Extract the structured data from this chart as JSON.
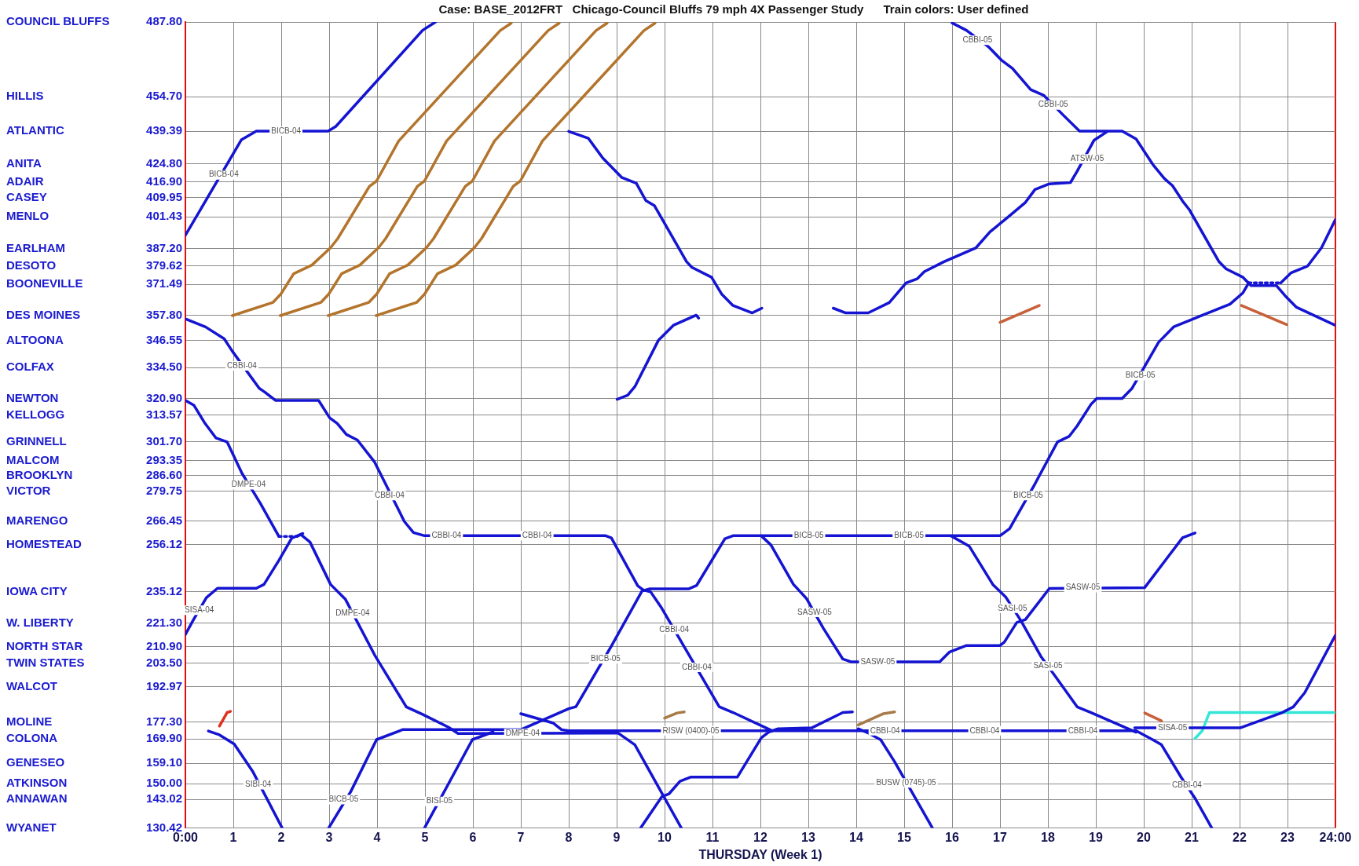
{
  "chart_data": {
    "type": "line",
    "title": "Case: BASE_2012FRT   Chicago-Council Bluffs 79 mph 4X Passenger Study      Train colors: User defined",
    "xlabel": "THURSDAY (Week 1)",
    "xlim": [
      0,
      24
    ],
    "xticks": [
      {
        "value": 0,
        "label": "0:00"
      },
      1,
      2,
      3,
      4,
      5,
      6,
      7,
      8,
      9,
      10,
      11,
      12,
      13,
      14,
      15,
      16,
      17,
      18,
      19,
      20,
      21,
      22,
      23,
      {
        "value": 24,
        "label": "24:00"
      }
    ],
    "ylim": [
      130.4,
      487.8
    ],
    "yticks": [
      {
        "value": 487.8,
        "label": "487.80"
      },
      {
        "value": 454.7,
        "label": "454.70"
      },
      {
        "value": 439.39,
        "label": "439.39"
      },
      {
        "value": 424.8,
        "label": "424.80"
      },
      {
        "value": 416.9,
        "label": "416.90"
      },
      {
        "value": 409.95,
        "label": "409.95"
      },
      {
        "value": 401.43,
        "label": "401.43"
      },
      {
        "value": 387.2,
        "label": "387.20"
      },
      {
        "value": 379.62,
        "label": "379.62"
      },
      {
        "value": 371.49,
        "label": "371.49"
      },
      {
        "value": 357.8,
        "label": "357.80"
      },
      {
        "value": 346.55,
        "label": "346.55"
      },
      {
        "value": 334.5,
        "label": "334.50"
      },
      {
        "value": 320.9,
        "label": "320.90"
      },
      {
        "value": 313.57,
        "label": "313.57"
      },
      {
        "value": 301.7,
        "label": "301.70"
      },
      {
        "value": 293.35,
        "label": "293.35"
      },
      {
        "value": 286.6,
        "label": "286.60"
      },
      {
        "value": 279.75,
        "label": "279.75"
      },
      {
        "value": 266.45,
        "label": "266.45"
      },
      {
        "value": 256.12,
        "label": "256.12"
      },
      {
        "value": 235.12,
        "label": "235.12"
      },
      {
        "value": 221.3,
        "label": "221.30"
      },
      {
        "value": 210.9,
        "label": "210.90"
      },
      {
        "value": 203.5,
        "label": "203.50"
      },
      {
        "value": 192.97,
        "label": "192.97"
      },
      {
        "value": 177.3,
        "label": "177.30"
      },
      {
        "value": 169.9,
        "label": "169.90"
      },
      {
        "value": 159.1,
        "label": "159.10"
      },
      {
        "value": 150.0,
        "label": "150.00"
      },
      {
        "value": 143.02,
        "label": "143.02"
      },
      {
        "value": 130.42,
        "label": "130.42"
      }
    ],
    "grid": true,
    "marker": "none",
    "line_style": "solid",
    "series": [
      {
        "color": "#1414d2",
        "x": [
          0,
          1.17,
          1.48,
          2.98,
          3.14,
          4.95,
          5.22
        ],
        "values": [
          393.2,
          435.6,
          439.4,
          439.4,
          441.5,
          484.1,
          487.8
        ]
      },
      {
        "color": "#b3742c",
        "x": [
          0.98,
          1.83,
          1.99,
          2.26,
          2.64,
          3.03,
          3.18,
          3.84,
          3.99,
          4.45,
          6.57,
          6.8
        ],
        "values": [
          357.6,
          363.5,
          367.1,
          376.2,
          380.0,
          387.7,
          391.8,
          414.9,
          417.3,
          435.0,
          484.0,
          487.3
        ]
      },
      {
        "color": "#b3742c",
        "x": [
          1.98,
          2.83,
          2.99,
          3.26,
          3.64,
          4.03,
          4.18,
          4.84,
          4.99,
          5.45,
          7.57,
          7.8
        ],
        "values": [
          357.6,
          363.5,
          367.1,
          376.2,
          380.0,
          387.7,
          391.8,
          414.9,
          417.3,
          435.0,
          484.0,
          487.3
        ]
      },
      {
        "color": "#b3742c",
        "x": [
          2.98,
          3.83,
          3.99,
          4.26,
          4.64,
          5.03,
          5.18,
          5.84,
          5.99,
          6.45,
          8.57,
          8.8
        ],
        "values": [
          357.6,
          363.5,
          367.1,
          376.2,
          380.0,
          387.7,
          391.8,
          414.9,
          417.3,
          435.0,
          484.0,
          487.3
        ]
      },
      {
        "color": "#b3742c",
        "x": [
          3.98,
          4.83,
          4.99,
          5.26,
          5.64,
          6.03,
          6.18,
          6.84,
          6.99,
          7.45,
          9.57,
          9.8
        ],
        "values": [
          357.6,
          363.5,
          367.1,
          376.2,
          380.0,
          387.7,
          391.8,
          414.9,
          417.3,
          435.0,
          484.0,
          487.3
        ]
      },
      {
        "color": "#1414d2",
        "x": [
          0,
          0.42,
          0.81,
          0.98,
          1.54,
          1.65,
          1.88,
          2.78,
          3.01,
          3.17,
          3.36,
          3.59,
          3.95,
          4.57,
          4.76,
          4.99,
          8.77,
          8.89,
          9.44,
          9.56,
          9.71,
          9.94,
          11.14,
          11.43,
          12.25,
          19.84,
          20.19,
          20.37,
          20.78,
          21.07,
          21.42
        ],
        "values": [
          356.2,
          352.6,
          347.3,
          341.8,
          325.4,
          323.8,
          320.0,
          320.0,
          312.3,
          309.8,
          304.9,
          302.4,
          292.6,
          266.3,
          261.4,
          260.0,
          260.0,
          259.0,
          237.8,
          235.9,
          235.1,
          227.9,
          184.2,
          181.6,
          173.5,
          173.5,
          169.5,
          167.3,
          152.9,
          143.6,
          130.4
        ]
      },
      {
        "color": "#1414d2",
        "x": [
          0,
          0.18,
          0.41,
          0.64,
          0.87,
          1.18,
          1.56,
          1.95
        ],
        "values": [
          320.0,
          317.8,
          309.8,
          303.3,
          301.6,
          287.7,
          274.5,
          259.7
        ]
      },
      {
        "color": "#1414d2",
        "line_style": "dotted",
        "x": [
          1.95,
          2.33
        ],
        "values": [
          259.7,
          259.7
        ]
      },
      {
        "color": "#1414d2",
        "x": [
          2.33,
          2.41,
          2.6,
          3.03,
          3.34,
          3.95,
          4.61,
          4.95,
          5.49,
          5.69,
          9.03,
          9.38,
          10.35
        ],
        "values": [
          259.7,
          260.5,
          257.2,
          238.4,
          231.8,
          207.1,
          184.1,
          180.8,
          175.1,
          172.3,
          172.5,
          167.3,
          130.4
        ]
      },
      {
        "color": "#1414d2",
        "x": [
          0,
          0.17,
          0.44,
          0.67,
          1.48,
          1.64,
          1.95,
          2.22,
          2.45
        ],
        "values": [
          216.2,
          222.8,
          232.6,
          236.7,
          236.7,
          238.4,
          249.0,
          258.9,
          261.0
        ]
      },
      {
        "color": "#1414d2",
        "x": [
          0.48,
          0.71,
          1.02,
          1.41,
          2.02
        ],
        "values": [
          173.4,
          171.7,
          167.6,
          155.3,
          130.4
        ]
      },
      {
        "color": "#1414d2",
        "x": [
          2.99,
          3.45,
          3.99,
          4.53,
          7.0,
          8.0,
          8.15,
          8.89,
          9.53,
          9.68,
          10.5,
          10.67,
          11.26,
          11.43,
          17.0,
          17.2,
          17.73,
          18.2,
          18.44,
          18.61,
          18.9,
          19.02,
          19.55,
          19.75,
          20.31,
          20.63,
          21.8,
          22.07,
          22.19
        ],
        "values": [
          130.4,
          146.5,
          169.6,
          174.0,
          174.0,
          183.3,
          184.2,
          211.1,
          235.5,
          236.4,
          236.4,
          238.0,
          258.7,
          260.0,
          260.0,
          263.1,
          283.0,
          301.6,
          304.0,
          308.7,
          318.3,
          320.9,
          320.9,
          325.2,
          345.8,
          352.7,
          362.7,
          367.7,
          372.1
        ]
      },
      {
        "color": "#1414d2",
        "line_style": "dotted",
        "x": [
          22.19,
          22.86
        ],
        "values": [
          372.1,
          372.1
        ]
      },
      {
        "color": "#1414d2",
        "x": [
          22.86,
          23.07,
          23.42,
          23.71,
          24
        ],
        "values": [
          372.1,
          376.5,
          379.6,
          387.7,
          400.2
        ]
      },
      {
        "color": "#1414d2",
        "x": [
          4.99,
          5.99,
          6.42
        ],
        "values": [
          130.4,
          169.6,
          173.0
        ]
      },
      {
        "color": "#1414d2",
        "x": [
          7.0,
          7.68,
          7.85,
          8.0,
          12.25
        ],
        "values": [
          181.1,
          176.9,
          174.0,
          173.5,
          173.5
        ]
      },
      {
        "color": "#1414d2",
        "x": [
          8.0,
          8.41,
          8.71,
          9.11,
          9.41,
          9.61,
          9.79,
          10.46,
          10.57,
          10.98,
          11.19,
          11.42,
          11.83,
          12.03
        ],
        "values": [
          439.3,
          436.2,
          427.5,
          418.8,
          416.3,
          408.6,
          406.3,
          381.5,
          379.0,
          374.6,
          367.2,
          362.2,
          358.8,
          360.9
        ]
      },
      {
        "color": "#1414d2",
        "x": [
          9.01,
          9.23,
          9.38,
          9.87,
          10.19,
          10.66,
          10.71
        ],
        "values": [
          320.5,
          322.3,
          326.1,
          346.6,
          353.4,
          357.8,
          356.5
        ]
      },
      {
        "color": "#1414d2",
        "x": [
          9.5,
          9.94,
          10.09,
          10.32,
          10.55,
          11.52,
          12.02,
          12.17,
          12.37,
          13.07,
          13.72,
          13.92
        ],
        "values": [
          130.4,
          144.2,
          145.5,
          151.1,
          153.0,
          153.0,
          170.4,
          172.9,
          174.4,
          174.8,
          181.6,
          181.9
        ]
      },
      {
        "color": "#1414d2",
        "x": [
          12.02,
          12.22,
          12.69,
          12.96,
          13.31,
          13.72,
          13.89,
          15.74,
          15.95,
          16.3,
          17.0,
          17.09,
          17.35,
          17.53,
          18.03,
          20.02,
          20.54,
          20.81,
          21.07
        ],
        "values": [
          259.9,
          255.9,
          238.4,
          232.2,
          219.1,
          205.3,
          204.1,
          204.1,
          208.5,
          211.3,
          211.3,
          212.8,
          221.5,
          222.8,
          236.6,
          237.0,
          251.6,
          259.1,
          261.2
        ]
      },
      {
        "color": "#1414d2",
        "x": [
          14.04,
          14.27,
          14.51,
          14.8,
          15.59
        ],
        "values": [
          174.4,
          172.3,
          169.5,
          159.8,
          130.4
        ]
      },
      {
        "color": "#1414d2",
        "x": [
          15.98,
          16.36,
          16.85,
          17.12,
          17.44,
          17.85,
          18.17,
          18.61,
          18.9,
          19.84
        ],
        "values": [
          259.9,
          255.3,
          238.4,
          232.8,
          222.2,
          206.6,
          197.2,
          184.1,
          181.6,
          172.9
        ]
      },
      {
        "color": "#1414d2",
        "x": [
          13.52,
          13.78,
          14.25,
          14.69,
          15.04,
          15.27,
          15.42,
          15.83,
          16.5,
          16.79,
          17.15,
          17.53,
          17.73,
          18.03,
          18.47,
          18.61,
          18.96,
          19.23
        ],
        "values": [
          360.9,
          358.8,
          358.8,
          363.4,
          372.1,
          373.9,
          377.1,
          381.5,
          387.7,
          394.7,
          401.0,
          407.8,
          413.5,
          416.0,
          416.6,
          421.6,
          435.3,
          439.1
        ]
      },
      {
        "color": "#1414d2",
        "x": [
          16.0,
          16.3,
          16.77,
          17.03,
          17.26,
          17.64,
          17.91,
          18.32,
          18.66,
          19.55,
          19.84,
          20.19,
          20.43,
          20.6,
          20.81,
          20.95,
          21.57,
          21.72,
          22.07,
          22.24,
          22.77,
          22.95,
          23.18,
          24
        ],
        "values": [
          487.4,
          484.1,
          476.6,
          470.9,
          467.2,
          457.8,
          455.3,
          446.5,
          439.4,
          439.4,
          435.9,
          424.6,
          418.4,
          415.2,
          408.4,
          404.6,
          381.5,
          378.3,
          374.6,
          370.9,
          370.9,
          366.4,
          361.4,
          353.3
        ]
      },
      {
        "color": "#1414d2",
        "x": [
          19.81,
          22.01,
          22.89,
          23.12,
          23.36,
          24
        ],
        "values": [
          174.8,
          174.8,
          181.6,
          184.1,
          190.4,
          215.9
        ]
      },
      {
        "color": "#33e6d6",
        "x": [
          21.07,
          21.22,
          21.37,
          24
        ],
        "values": [
          170.1,
          173.5,
          181.6,
          181.6
        ]
      },
      {
        "color": "#e0301e",
        "x": [
          0.71,
          0.87,
          0.94
        ],
        "values": [
          175.6,
          181.6,
          182.1
        ]
      },
      {
        "color": "#a87a48",
        "x": [
          10.0,
          10.26,
          10.41
        ],
        "values": [
          179.1,
          181.4,
          181.9
        ]
      },
      {
        "color": "#a87a48",
        "x": [
          14.04,
          14.57,
          14.8
        ],
        "values": [
          176.1,
          181.1,
          181.9
        ]
      },
      {
        "color": "#c8603a",
        "x": [
          20.02,
          20.37
        ],
        "values": [
          181.4,
          177.9
        ]
      },
      {
        "color": "#c8603a",
        "x": [
          17.0,
          17.82
        ],
        "values": [
          354.6,
          362.1
        ]
      },
      {
        "color": "#c8603a",
        "x": [
          22.04,
          22.98
        ],
        "values": [
          362.1,
          353.6
        ]
      }
    ],
    "annotations": [
      "COUNCIL BLUFFS",
      "HILLIS",
      "ATLANTIC",
      "ANITA",
      "ADAIR",
      "CASEY",
      "MENLO",
      "EARLHAM",
      "DESOTO",
      "BOONEVILLE",
      "DES MOINES",
      "ALTOONA",
      "COLFAX",
      "NEWTON",
      "KELLOGG",
      "GRINNELL",
      "MALCOM",
      "BROOKLYN",
      "VICTOR",
      "MARENGO",
      "HOMESTEAD",
      "IOWA CITY",
      "W. LIBERTY",
      "NORTH STAR",
      "TWIN STATES",
      "WALCOT",
      "MOLINE",
      "COLONA",
      "GENESEO",
      "ATKINSON",
      "ANNAWAN",
      "WYANET",
      {
        "text": "BICB-04",
        "x": 0.8,
        "y": 420
      },
      {
        "text": "BICB-04",
        "x": 2.1,
        "y": 439.4
      },
      {
        "text": "CBBI-04",
        "x": 1.18,
        "y": 335.3
      },
      {
        "text": "CBBI-04",
        "x": 4.26,
        "y": 277.8
      },
      {
        "text": "CBBI-04",
        "x": 5.45,
        "y": 260.0
      },
      {
        "text": "CBBI-04",
        "x": 7.34,
        "y": 260.0
      },
      {
        "text": "CBBI-04",
        "x": 10.2,
        "y": 218.4
      },
      {
        "text": "CBBI-04",
        "x": 10.67,
        "y": 201.6
      },
      {
        "text": "CBBI-04",
        "x": 14.6,
        "y": 173.5
      },
      {
        "text": "CBBI-04",
        "x": 16.68,
        "y": 173.5
      },
      {
        "text": "CBBI-04",
        "x": 18.73,
        "y": 173.5
      },
      {
        "text": "CBBI-04",
        "x": 20.9,
        "y": 149.2
      },
      {
        "text": "DMPE-04",
        "x": 1.32,
        "y": 282.6
      },
      {
        "text": "DMPE-04",
        "x": 3.49,
        "y": 225.5
      },
      {
        "text": "DMPE-04",
        "x": 7.04,
        "y": 172.3
      },
      {
        "text": "SISA-04",
        "x": 0.29,
        "y": 227.0
      },
      {
        "text": "SIBI-04",
        "x": 1.52,
        "y": 149.6
      },
      {
        "text": "BICB-05",
        "x": 3.3,
        "y": 143.0
      },
      {
        "text": "BICB-05",
        "x": 8.77,
        "y": 205.4
      },
      {
        "text": "BICB-05",
        "x": 13.01,
        "y": 260.0
      },
      {
        "text": "BICB-05",
        "x": 15.1,
        "y": 260.0
      },
      {
        "text": "BICB-05",
        "x": 17.59,
        "y": 277.8
      },
      {
        "text": "BICB-05",
        "x": 19.93,
        "y": 331.0
      },
      {
        "text": "BISI-05",
        "x": 5.3,
        "y": 142.2
      },
      {
        "text": "RISW (0400)-05",
        "x": 10.55,
        "y": 173.5
      },
      {
        "text": "SASW-05",
        "x": 13.13,
        "y": 226.0
      },
      {
        "text": "SASW-05",
        "x": 14.45,
        "y": 204.1
      },
      {
        "text": "SASW-05",
        "x": 18.73,
        "y": 237.0
      },
      {
        "text": "SASI-05",
        "x": 17.26,
        "y": 227.8
      },
      {
        "text": "SASI-05",
        "x": 18.0,
        "y": 202.2
      },
      {
        "text": "BUSW (0745)-05",
        "x": 15.04,
        "y": 150.4
      },
      {
        "text": "CBBI-05",
        "x": 16.53,
        "y": 479.7
      },
      {
        "text": "CBBI-05",
        "x": 18.11,
        "y": 451.0
      },
      {
        "text": "ATSW-05",
        "x": 18.82,
        "y": 427.1
      },
      {
        "text": "SISA-05",
        "x": 20.6,
        "y": 174.8
      }
    ]
  }
}
